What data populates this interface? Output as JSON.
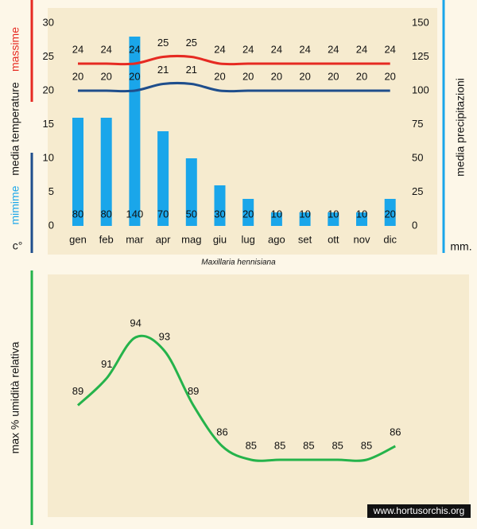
{
  "chart_data": [
    {
      "type": "combo",
      "title": "Maxillaria hennisiana",
      "categories": [
        "gen",
        "feb",
        "mar",
        "apr",
        "mag",
        "giu",
        "lug",
        "ago",
        "set",
        "ott",
        "nov",
        "dic"
      ],
      "series": [
        {
          "name": "massime",
          "type": "line",
          "color": "#e62a22",
          "values": [
            24,
            24,
            24,
            25,
            25,
            24,
            24,
            24,
            24,
            24,
            24,
            24
          ]
        },
        {
          "name": "mimime",
          "type": "line",
          "color": "#1f4e8c",
          "values": [
            20,
            20,
            20,
            21,
            21,
            20,
            20,
            20,
            20,
            20,
            20,
            20
          ]
        },
        {
          "name": "media precipitazioni",
          "type": "bar",
          "axis": "y2",
          "color": "#1aa6ea",
          "values": [
            80,
            80,
            140,
            70,
            50,
            30,
            20,
            10,
            10,
            10,
            10,
            20
          ]
        }
      ],
      "y_label": "media temperature",
      "y_unit": "c°",
      "y2_unit": "mm.",
      "ylim": [
        0,
        30
      ],
      "yticks": [
        0,
        5,
        10,
        15,
        20,
        25,
        30
      ],
      "y2lim": [
        0,
        150
      ],
      "y2ticks": [
        0,
        25,
        50,
        75,
        100,
        125,
        150
      ]
    },
    {
      "type": "line",
      "y_label": "max % umidità relativa",
      "series": [
        {
          "name": null,
          "color": "#25b34b",
          "values": [
            89,
            91,
            94,
            93,
            89,
            86,
            85,
            85,
            85,
            85,
            85,
            86
          ]
        }
      ]
    }
  ],
  "footer": "www.hortusorchis.org"
}
